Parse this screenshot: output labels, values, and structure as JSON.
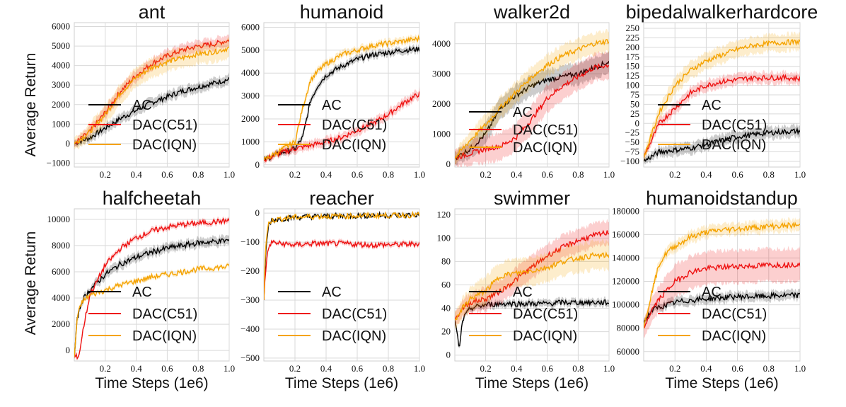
{
  "chart_data": {
    "type": "line",
    "ylabel": "Average Return",
    "xlabel": "Time Steps (1e6)",
    "x_ticks": [
      0.2,
      0.4,
      0.6,
      0.8,
      1.0
    ],
    "x_tick_labels": [
      "0.2",
      "0.4",
      "0.6",
      "0.8",
      "1.0"
    ],
    "xlim": [
      0,
      1.0
    ],
    "colors": {
      "AC": "#000000",
      "DAC(C51)": "#ee1111",
      "DAC(IQN)": "#f5a300"
    },
    "subplots": [
      {
        "title": "ant",
        "ylim": [
          -1200,
          6200
        ],
        "y_ticks": [
          -1000,
          0,
          1000,
          2000,
          3000,
          4000,
          5000,
          6000
        ],
        "y_tick_labels": [
          "−1000",
          "0",
          "1000",
          "2000",
          "3000",
          "4000",
          "5000",
          "6000"
        ],
        "legend": [
          "AC",
          "DAC(C51)",
          "DAC(IQN)"
        ],
        "series": [
          {
            "name": "AC",
            "x": [
              0,
              0.1,
              0.2,
              0.3,
              0.4,
              0.5,
              0.6,
              0.7,
              0.8,
              0.9,
              1.0
            ],
            "values": [
              0,
              300,
              800,
              1300,
              1700,
              2100,
              2400,
              2700,
              2900,
              3100,
              3300
            ],
            "band": 250
          },
          {
            "name": "DAC(C51)",
            "x": [
              0,
              0.1,
              0.2,
              0.3,
              0.4,
              0.5,
              0.6,
              0.7,
              0.8,
              0.9,
              1.0
            ],
            "values": [
              0,
              600,
              1600,
              2700,
              3500,
              4100,
              4500,
              4800,
              5000,
              5100,
              5300
            ],
            "band": 300
          },
          {
            "name": "DAC(IQN)",
            "x": [
              0,
              0.1,
              0.2,
              0.3,
              0.4,
              0.5,
              0.6,
              0.7,
              0.8,
              0.9,
              1.0
            ],
            "values": [
              0,
              600,
              1500,
              2600,
              3400,
              3900,
              4200,
              4400,
              4600,
              4700,
              4900
            ],
            "band": 500
          }
        ]
      },
      {
        "title": "humanoid",
        "ylim": [
          -100,
          6200
        ],
        "y_ticks": [
          0,
          1000,
          2000,
          3000,
          4000,
          5000,
          6000
        ],
        "y_tick_labels": [
          "0",
          "1000",
          "2000",
          "3000",
          "4000",
          "5000",
          "6000"
        ],
        "legend": [
          "AC",
          "DAC(C51)",
          "DAC(IQN)"
        ],
        "series": [
          {
            "name": "AC",
            "x": [
              0,
              0.1,
              0.2,
              0.25,
              0.3,
              0.35,
              0.4,
              0.5,
              0.6,
              0.7,
              0.8,
              0.9,
              1.0
            ],
            "values": [
              200,
              500,
              700,
              1200,
              2800,
              3500,
              3900,
              4300,
              4600,
              4800,
              4900,
              5000,
              5050
            ],
            "band": 150
          },
          {
            "name": "DAC(C51)",
            "x": [
              0,
              0.1,
              0.2,
              0.3,
              0.4,
              0.5,
              0.6,
              0.7,
              0.8,
              0.9,
              1.0
            ],
            "values": [
              200,
              500,
              700,
              850,
              1000,
              1200,
              1500,
              1800,
              2200,
              2700,
              3100
            ],
            "band": 200
          },
          {
            "name": "DAC(IQN)",
            "x": [
              0,
              0.1,
              0.2,
              0.25,
              0.3,
              0.35,
              0.4,
              0.5,
              0.6,
              0.7,
              0.8,
              0.9,
              1.0
            ],
            "values": [
              200,
              600,
              1000,
              2500,
              3700,
              4100,
              4400,
              4800,
              5000,
              5200,
              5300,
              5400,
              5500
            ],
            "band": 150
          }
        ]
      },
      {
        "title": "walker2d",
        "ylim": [
          -100,
          4700
        ],
        "y_ticks": [
          0,
          1000,
          2000,
          3000,
          4000
        ],
        "y_tick_labels": [
          "0",
          "1000",
          "2000",
          "3000",
          "4000"
        ],
        "legend": [
          "AC",
          "DAC(C51)",
          "DAC(IQN)"
        ],
        "series": [
          {
            "name": "AC",
            "x": [
              0,
              0.1,
              0.2,
              0.3,
              0.4,
              0.5,
              0.6,
              0.7,
              0.8,
              0.9,
              1.0
            ],
            "values": [
              200,
              500,
              1000,
              1900,
              2300,
              2600,
              2800,
              2900,
              3000,
              3200,
              3400
            ],
            "band": 350
          },
          {
            "name": "DAC(C51)",
            "x": [
              0,
              0.1,
              0.2,
              0.3,
              0.4,
              0.5,
              0.6,
              0.7,
              0.8,
              0.9,
              1.0
            ],
            "values": [
              200,
              350,
              500,
              600,
              900,
              1500,
              2200,
              2600,
              2900,
              3200,
              3300
            ],
            "band": 450
          },
          {
            "name": "DAC(IQN)",
            "x": [
              0,
              0.1,
              0.2,
              0.3,
              0.4,
              0.5,
              0.6,
              0.7,
              0.8,
              0.9,
              1.0
            ],
            "values": [
              200,
              800,
              1300,
              1900,
              2400,
              2900,
              3300,
              3600,
              3800,
              4000,
              4100
            ],
            "band": 350
          }
        ]
      },
      {
        "title": "bipedalwalkerhardcore",
        "ylim": [
          -115,
          265
        ],
        "y_ticks": [
          -100,
          -75,
          -50,
          -25,
          0,
          25,
          50,
          75,
          100,
          125,
          150,
          175,
          200,
          225,
          250
        ],
        "y_tick_labels": [
          "−100",
          "−75",
          "−50",
          "−25",
          "0",
          "25",
          "50",
          "75",
          "100",
          "125",
          "150",
          "175",
          "200",
          "225",
          "250"
        ],
        "legend": [
          "AC",
          "DAC(C51)",
          "DAC(IQN)"
        ],
        "series": [
          {
            "name": "AC",
            "x": [
              0,
              0.1,
              0.2,
              0.3,
              0.4,
              0.5,
              0.6,
              0.7,
              0.8,
              0.9,
              1.0
            ],
            "values": [
              -100,
              -75,
              -70,
              -65,
              -55,
              -45,
              -35,
              -30,
              -25,
              -22,
              -20
            ],
            "band": 15
          },
          {
            "name": "DAC(C51)",
            "x": [
              0,
              0.1,
              0.2,
              0.3,
              0.4,
              0.5,
              0.6,
              0.7,
              0.8,
              0.9,
              1.0
            ],
            "values": [
              -90,
              0,
              40,
              80,
              100,
              110,
              115,
              120,
              120,
              120,
              118
            ],
            "band": 15
          },
          {
            "name": "DAC(IQN)",
            "x": [
              0,
              0.1,
              0.2,
              0.3,
              0.4,
              0.5,
              0.6,
              0.7,
              0.8,
              0.9,
              1.0
            ],
            "values": [
              -90,
              30,
              100,
              140,
              165,
              180,
              195,
              205,
              210,
              213,
              215
            ],
            "band": 22
          }
        ]
      },
      {
        "title": "halfcheetah",
        "ylim": [
          -800,
          10800
        ],
        "y_ticks": [
          0,
          2000,
          4000,
          6000,
          8000,
          10000
        ],
        "y_tick_labels": [
          "0",
          "2000",
          "4000",
          "6000",
          "8000",
          "10000"
        ],
        "legend": [
          "AC",
          "DAC(C51)",
          "DAC(IQN)"
        ],
        "series": [
          {
            "name": "AC",
            "x": [
              0,
              0.02,
              0.05,
              0.1,
              0.2,
              0.3,
              0.4,
              0.5,
              0.6,
              0.7,
              0.8,
              0.9,
              1.0
            ],
            "values": [
              -500,
              2500,
              3800,
              4600,
              5800,
              6600,
              7100,
              7500,
              7800,
              8000,
              8200,
              8300,
              8400
            ],
            "band": 350
          },
          {
            "name": "DAC(C51)",
            "x": [
              0,
              0.03,
              0.06,
              0.1,
              0.2,
              0.3,
              0.4,
              0.5,
              0.6,
              0.7,
              0.8,
              0.9,
              1.0
            ],
            "values": [
              -500,
              -400,
              1800,
              4200,
              6500,
              7800,
              8600,
              9100,
              9400,
              9600,
              9700,
              9800,
              9900
            ],
            "band": 200
          },
          {
            "name": "DAC(IQN)",
            "x": [
              0,
              0.02,
              0.05,
              0.1,
              0.2,
              0.3,
              0.4,
              0.5,
              0.6,
              0.7,
              0.8,
              0.9,
              1.0
            ],
            "values": [
              -500,
              2600,
              3700,
              4200,
              4600,
              5000,
              5300,
              5600,
              5800,
              6000,
              6200,
              6300,
              6400
            ],
            "band": 150
          }
        ]
      },
      {
        "title": "reacher",
        "ylim": [
          -510,
          15
        ],
        "y_ticks": [
          -500,
          -400,
          -300,
          -200,
          -100,
          0
        ],
        "y_tick_labels": [
          "−500",
          "−400",
          "−300",
          "−200",
          "−100",
          "0"
        ],
        "legend": [
          "AC",
          "DAC(C51)",
          "DAC(IQN)"
        ],
        "series": [
          {
            "name": "AC",
            "x": [
              0,
              0.01,
              0.03,
              0.05,
              0.1,
              0.2,
              0.3,
              0.5,
              0.7,
              0.9,
              1.0
            ],
            "values": [
              -300,
              -150,
              -40,
              -25,
              -20,
              -15,
              -12,
              -10,
              -8,
              -7,
              -6
            ],
            "band": 4
          },
          {
            "name": "DAC(C51)",
            "x": [
              0,
              0.01,
              0.03,
              0.05,
              0.1,
              0.2,
              0.3,
              0.5,
              0.7,
              0.9,
              1.0
            ],
            "values": [
              -300,
              -200,
              -120,
              -100,
              -105,
              -110,
              -105,
              -105,
              -110,
              -108,
              -105
            ],
            "band": 8
          },
          {
            "name": "DAC(IQN)",
            "x": [
              0,
              0.01,
              0.03,
              0.05,
              0.1,
              0.2,
              0.3,
              0.5,
              0.7,
              0.9,
              1.0
            ],
            "values": [
              -300,
              -120,
              -35,
              -25,
              -20,
              -14,
              -12,
              -10,
              -8,
              -7,
              -6
            ],
            "band": 4
          }
        ]
      },
      {
        "title": "swimmer",
        "ylim": [
          -5,
          125
        ],
        "y_ticks": [
          0,
          20,
          40,
          60,
          80,
          100,
          120
        ],
        "y_tick_labels": [
          "0",
          "20",
          "40",
          "60",
          "80",
          "100",
          "120"
        ],
        "legend": [
          "AC",
          "DAC(C51)",
          "DAC(IQN)"
        ],
        "series": [
          {
            "name": "AC",
            "x": [
              0,
              0.03,
              0.05,
              0.1,
              0.2,
              0.3,
              0.4,
              0.5,
              0.6,
              0.7,
              0.8,
              0.9,
              1.0
            ],
            "values": [
              30,
              5,
              30,
              40,
              43,
              44,
              44,
              44,
              44,
              45,
              45,
              45,
              45
            ],
            "band": 3
          },
          {
            "name": "DAC(C51)",
            "x": [
              0,
              0.05,
              0.1,
              0.2,
              0.3,
              0.4,
              0.5,
              0.6,
              0.7,
              0.8,
              0.9,
              1.0
            ],
            "values": [
              30,
              40,
              45,
              48,
              55,
              65,
              75,
              85,
              92,
              98,
              102,
              105
            ],
            "band": 10
          },
          {
            "name": "DAC(IQN)",
            "x": [
              0,
              0.05,
              0.1,
              0.2,
              0.3,
              0.4,
              0.5,
              0.6,
              0.7,
              0.8,
              0.9,
              1.0
            ],
            "values": [
              30,
              40,
              48,
              55,
              68,
              70,
              72,
              75,
              80,
              83,
              85,
              85
            ],
            "band": 12
          }
        ]
      },
      {
        "title": "humanoidstandup",
        "ylim": [
          52000,
          182000
        ],
        "y_ticks": [
          60000,
          80000,
          100000,
          120000,
          140000,
          160000,
          180000
        ],
        "y_tick_labels": [
          "60000",
          "80000",
          "100000",
          "120000",
          "140000",
          "160000",
          "180000"
        ],
        "legend": [
          "AC",
          "DAC(C51)",
          "DAC(IQN)"
        ],
        "series": [
          {
            "name": "AC",
            "x": [
              0,
              0.05,
              0.1,
              0.2,
              0.3,
              0.4,
              0.5,
              0.6,
              0.7,
              0.8,
              0.9,
              1.0
            ],
            "values": [
              85000,
              95000,
              98000,
              102000,
              104000,
              105000,
              106000,
              107000,
              107000,
              107500,
              108000,
              108000
            ],
            "band": 4000
          },
          {
            "name": "DAC(C51)",
            "x": [
              0,
              0.05,
              0.1,
              0.2,
              0.3,
              0.4,
              0.5,
              0.6,
              0.7,
              0.8,
              0.9,
              1.0
            ],
            "values": [
              80000,
              95000,
              105000,
              120000,
              128000,
              131000,
              132000,
              133000,
              133000,
              134000,
              134000,
              135000
            ],
            "band": 14000
          },
          {
            "name": "DAC(IQN)",
            "x": [
              0,
              0.05,
              0.1,
              0.15,
              0.2,
              0.3,
              0.4,
              0.5,
              0.6,
              0.7,
              0.8,
              0.9,
              1.0
            ],
            "values": [
              80000,
              110000,
              135000,
              145000,
              150000,
              158000,
              162000,
              164000,
              165000,
              166000,
              167000,
              167500,
              168000
            ],
            "band": 5000
          }
        ]
      }
    ]
  }
}
